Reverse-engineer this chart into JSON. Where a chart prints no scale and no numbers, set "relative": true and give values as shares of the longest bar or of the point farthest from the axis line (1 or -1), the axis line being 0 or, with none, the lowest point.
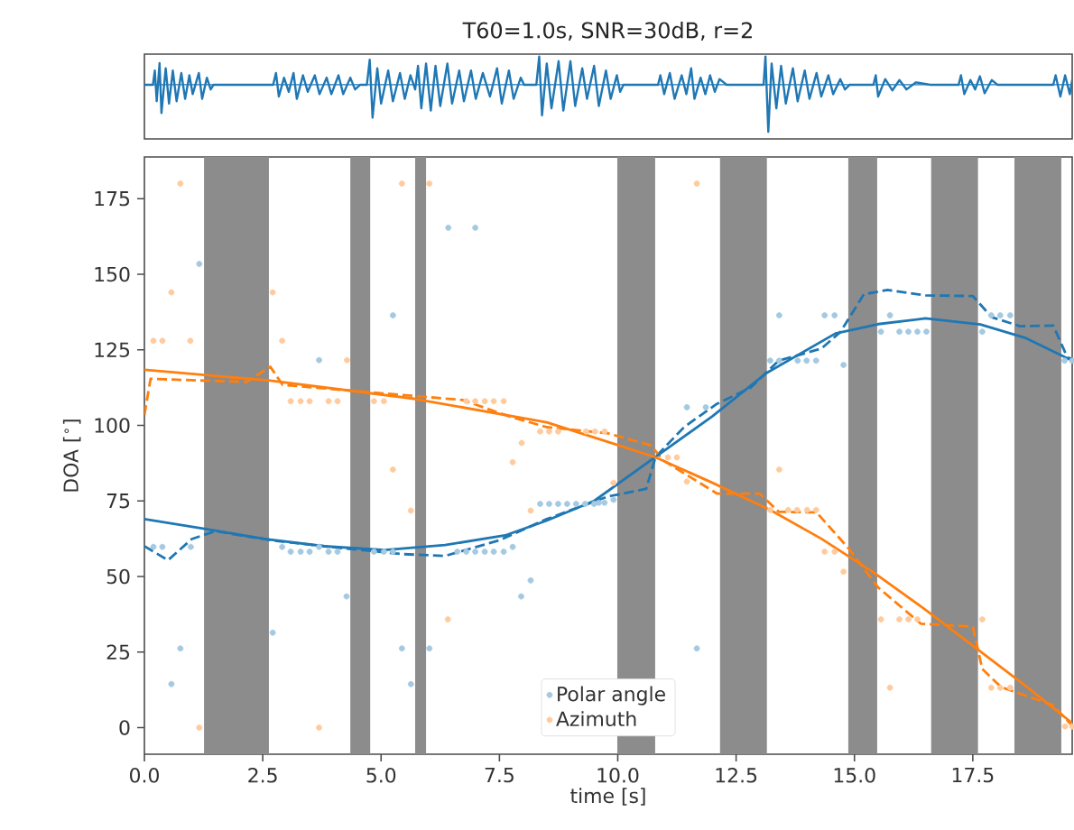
{
  "chart_data": [
    {
      "type": "line",
      "title": "T60=1.0s, SNR=30dB, r=2",
      "relative": true,
      "xlim": [
        0,
        19.6
      ],
      "color": "#1f77b4",
      "ref_lines": [
        {
          "axis": "y",
          "value": 0,
          "color": "#1f77b4"
        }
      ],
      "x": [
        0,
        0.18,
        0.22,
        0.26,
        0.32,
        0.36,
        0.45,
        0.52,
        0.6,
        0.68,
        0.78,
        0.86,
        0.95,
        1.02,
        1.15,
        1.22,
        1.32,
        1.4,
        1.46,
        2.72,
        2.78,
        2.84,
        2.95,
        3.05,
        3.15,
        3.22,
        3.35,
        3.45,
        3.6,
        3.7,
        3.85,
        3.95,
        4.1,
        4.2,
        4.35,
        4.45,
        4.56,
        4.7,
        4.76,
        4.82,
        4.92,
        5.0,
        5.15,
        5.25,
        5.4,
        5.5,
        5.62,
        5.72,
        5.78,
        5.85,
        5.95,
        6.05,
        6.15,
        6.25,
        6.4,
        6.5,
        6.65,
        6.75,
        6.9,
        7.0,
        7.15,
        7.3,
        7.45,
        7.55,
        7.7,
        7.8,
        7.95,
        8.02,
        8.28,
        8.34,
        8.4,
        8.5,
        8.6,
        8.75,
        8.85,
        9.0,
        9.1,
        9.25,
        9.35,
        9.5,
        9.6,
        9.75,
        9.85,
        9.98,
        10.05,
        10.12,
        10.85,
        10.9,
        10.98,
        11.1,
        11.2,
        11.35,
        11.45,
        11.55,
        11.62,
        11.75,
        11.85,
        11.95,
        12.05,
        12.15,
        12.3,
        13.08,
        13.12,
        13.18,
        13.25,
        13.35,
        13.45,
        13.55,
        13.7,
        13.8,
        13.95,
        14.05,
        14.2,
        14.3,
        14.45,
        14.55,
        14.7,
        14.8,
        14.9,
        15.4,
        15.45,
        15.5,
        15.65,
        15.8,
        15.95,
        16.1,
        16.3,
        16.6,
        17.2,
        17.25,
        17.32,
        17.45,
        17.55,
        17.65,
        17.75,
        17.9,
        18.02,
        19.2,
        19.25,
        19.35,
        19.45,
        19.55,
        19.6
      ],
      "values": [
        0,
        0,
        0.3,
        -0.35,
        0.46,
        -0.6,
        0.35,
        -0.4,
        0.3,
        -0.35,
        0.25,
        -0.3,
        0.2,
        -0.2,
        0.25,
        -0.3,
        0.15,
        -0.1,
        0,
        0,
        0.25,
        -0.25,
        0.15,
        -0.15,
        0.25,
        -0.3,
        0.2,
        -0.15,
        0.2,
        -0.2,
        0.15,
        -0.2,
        0.2,
        -0.2,
        0.15,
        -0.1,
        0,
        0,
        0.53,
        -0.7,
        0.35,
        -0.4,
        0.3,
        -0.35,
        0.25,
        -0.3,
        0.2,
        -0.1,
        0.4,
        -0.5,
        0.45,
        -0.55,
        0.4,
        -0.45,
        0.45,
        -0.4,
        0.3,
        -0.35,
        0.3,
        -0.3,
        0.25,
        -0.25,
        0.35,
        -0.4,
        0.3,
        -0.3,
        0.15,
        0,
        0,
        0.6,
        -0.65,
        0.45,
        -0.5,
        0.5,
        -0.55,
        0.5,
        -0.45,
        0.35,
        -0.3,
        0.4,
        -0.45,
        0.3,
        -0.3,
        0.2,
        -0.15,
        0,
        0,
        0.2,
        -0.2,
        0.25,
        -0.3,
        0.2,
        -0.2,
        0.35,
        -0.3,
        0.15,
        -0.2,
        0.2,
        -0.15,
        0.12,
        0,
        0,
        0.6,
        -1,
        0.45,
        -0.5,
        0.4,
        -0.4,
        0.35,
        -0.35,
        0.3,
        -0.3,
        0.25,
        -0.25,
        0.2,
        -0.2,
        0.12,
        -0.1,
        0,
        0,
        0.2,
        -0.25,
        0.12,
        -0.12,
        0.1,
        -0.1,
        0.05,
        0,
        0,
        0.2,
        -0.2,
        0.1,
        -0.1,
        0.18,
        -0.18,
        0.1,
        0,
        0,
        0.2,
        -0.25,
        0.2,
        -0.2,
        0.1
      ]
    },
    {
      "type": "scatter",
      "xlabel": "time [s]",
      "ylabel": "DOA [$^{∘}$]",
      "xlim": [
        0,
        19.6
      ],
      "ylim": [
        -8.8,
        188.8
      ],
      "xticks": [
        {
          "value": 0,
          "label": "0.0"
        },
        {
          "value": 2.5,
          "label": "2.5"
        },
        {
          "value": 5,
          "label": "5.0"
        },
        {
          "value": 7.5,
          "label": "7.5"
        },
        {
          "value": 10,
          "label": "10.0"
        },
        {
          "value": 12.5,
          "label": "12.5"
        },
        {
          "value": 15,
          "label": "15.0"
        },
        {
          "value": 17.5,
          "label": "17.5"
        }
      ],
      "yticks": [
        0,
        25,
        50,
        75,
        100,
        125,
        150,
        175
      ],
      "legend": "bottom",
      "bands": [
        {
          "axis": "x",
          "from": 1.26,
          "to": 2.63,
          "color": "#8c8c8c"
        },
        {
          "axis": "x",
          "from": 4.35,
          "to": 4.77,
          "color": "#8c8c8c"
        },
        {
          "axis": "x",
          "from": 5.72,
          "to": 5.95,
          "color": "#8c8c8c"
        },
        {
          "axis": "x",
          "from": 9.99,
          "to": 10.79,
          "color": "#8c8c8c"
        },
        {
          "axis": "x",
          "from": 12.16,
          "to": 13.15,
          "color": "#8c8c8c"
        },
        {
          "axis": "x",
          "from": 14.87,
          "to": 15.48,
          "color": "#8c8c8c"
        },
        {
          "axis": "x",
          "from": 16.62,
          "to": 17.61,
          "color": "#8c8c8c"
        },
        {
          "axis": "x",
          "from": 18.38,
          "to": 19.37,
          "color": "#8c8c8c"
        }
      ],
      "series": [
        {
          "name": "Polar angle",
          "type": "scatter",
          "marker": "circle",
          "color": "#a5c9e1",
          "x": [
            0.19,
            0.38,
            0.57,
            0.76,
            0.98,
            1.16,
            2.71,
            2.91,
            3.09,
            3.3,
            3.49,
            3.69,
            3.69,
            3.89,
            4.08,
            4.27,
            4.85,
            5.06,
            5.25,
            5.25,
            5.44,
            5.63,
            6.02,
            6.42,
            6.61,
            6.8,
            6.99,
            6.99,
            7.19,
            7.38,
            7.59,
            7.78,
            7.96,
            8.16,
            8.36,
            8.55,
            8.74,
            8.93,
            9.12,
            9.31,
            9.5,
            9.6,
            9.72,
            9.91,
            11.46,
            11.67,
            11.86,
            13.22,
            13.41,
            13.41,
            13.8,
            13.99,
            14.19,
            14.37,
            14.58,
            14.77,
            15.56,
            15.75,
            15.95,
            16.14,
            16.33,
            16.52,
            17.7,
            17.89,
            18.08,
            18.29,
            19.44,
            19.6
          ],
          "values": [
            59.8,
            59.8,
            14.4,
            26.2,
            59.8,
            153.4,
            31.4,
            59.8,
            58.2,
            58.2,
            58.2,
            59.8,
            121.6,
            58.2,
            58.2,
            43.4,
            58.2,
            58.2,
            58.2,
            136.4,
            26.2,
            14.4,
            26.2,
            165.4,
            58.2,
            58.2,
            58.2,
            165.4,
            58.2,
            58.2,
            58.2,
            59.8,
            43.4,
            48.7,
            74,
            74,
            74,
            74,
            74,
            74,
            74,
            74.4,
            74.4,
            75.4,
            106,
            26.2,
            106,
            121.4,
            121.4,
            136.4,
            121.4,
            121.4,
            121.4,
            136.4,
            136.4,
            120,
            131,
            136.4,
            131,
            131,
            131,
            131,
            131,
            136.4,
            136.4,
            136.4,
            121.4,
            121.4
          ]
        },
        {
          "name": "Azimuth",
          "type": "scatter",
          "marker": "circle",
          "color": "#ffcb9e",
          "x": [
            0.19,
            0.38,
            0.57,
            0.76,
            0.97,
            1.16,
            2.71,
            2.91,
            3.09,
            3.3,
            3.49,
            3.69,
            3.89,
            4.08,
            4.28,
            4.85,
            5.06,
            5.25,
            5.44,
            5.63,
            6.02,
            6.41,
            6.8,
            6.99,
            7.19,
            7.38,
            7.59,
            7.78,
            7.97,
            8.16,
            8.36,
            8.55,
            8.74,
            9.33,
            9.52,
            9.72,
            9.91,
            11.06,
            11.25,
            11.46,
            11.67,
            13.22,
            13.41,
            13.6,
            13.79,
            14.0,
            14.19,
            14.37,
            14.58,
            14.77,
            15.56,
            15.75,
            15.95,
            16.14,
            16.33,
            17.7,
            17.89,
            18.08,
            18.29,
            19.45,
            19.6
          ],
          "values": [
            128,
            128,
            144,
            180,
            128,
            0,
            144,
            128,
            108,
            108,
            108,
            0,
            108,
            108,
            121.6,
            108,
            108,
            85.4,
            180,
            71.8,
            180,
            35.8,
            108,
            108,
            108,
            108,
            108,
            87.8,
            94.2,
            71.8,
            98,
            98,
            98,
            98,
            98,
            98,
            81,
            89.4,
            89.4,
            81.4,
            180,
            72,
            85.4,
            72,
            72,
            72,
            72,
            58.2,
            58.2,
            51.6,
            35.8,
            13.2,
            35.8,
            35.8,
            35.8,
            35.8,
            13.2,
            13.2,
            13.2,
            0.4,
            0.4
          ]
        },
        {
          "type": "line",
          "marker": "none",
          "line_style": "dashed",
          "color": "#1f77b4",
          "x": [
            0,
            0.5,
            1.0,
            1.5,
            2.67,
            3.8,
            5.46,
            6.35,
            7.5,
            8.5,
            9.78,
            10.6,
            10.8,
            11.4,
            12.08,
            12.8,
            13.4,
            14.3,
            14.7,
            15.2,
            15.7,
            16.5,
            17.5,
            17.9,
            18.5,
            19.2,
            19.5,
            19.6
          ],
          "values": [
            60,
            55.4,
            62.4,
            65,
            62,
            60,
            57.4,
            56.8,
            62,
            69,
            76.4,
            79,
            89.6,
            99.4,
            107,
            112.4,
            121.4,
            125.4,
            130.8,
            143.4,
            144.8,
            143,
            142.8,
            135.8,
            132.8,
            133,
            122.4,
            122
          ]
        },
        {
          "type": "line",
          "marker": "none",
          "line_style": "dashed",
          "color": "#ff7f0e",
          "x": [
            0,
            0.13,
            1.27,
            2.16,
            2.66,
            2.92,
            5.95,
            6.72,
            7.7,
            8.5,
            9.78,
            10.7,
            10.96,
            12.1,
            13.0,
            13.4,
            14.2,
            14.87,
            15.5,
            16.4,
            17.5,
            17.7,
            18.1,
            19.2,
            19.6
          ],
          "values": [
            103.4,
            115.4,
            114.8,
            114.4,
            119.4,
            113.4,
            109.4,
            108.4,
            103,
            99.4,
            97.4,
            93.4,
            88.4,
            77.4,
            77.4,
            71.4,
            71.2,
            59.4,
            46.4,
            34.4,
            33.4,
            19.4,
            13.4,
            7.4,
            0.6
          ]
        },
        {
          "type": "line",
          "marker": "none",
          "line_style": "solid",
          "color": "#1f77b4",
          "x": [
            0,
            1.27,
            2.54,
            3.81,
            5.08,
            6.35,
            7.62,
            8.5,
            9.5,
            10.8,
            12,
            13.15,
            14.6,
            15.5,
            16.5,
            17.66,
            18.6,
            19.6
          ],
          "values": [
            69,
            65.8,
            62.4,
            60,
            58.8,
            60.4,
            63.6,
            68.5,
            75,
            89.6,
            103,
            117.4,
            130.4,
            133.5,
            135.4,
            133.4,
            129,
            121.4
          ]
        },
        {
          "type": "line",
          "marker": "none",
          "line_style": "solid",
          "color": "#ff7f0e",
          "x": [
            0,
            2.66,
            5.7,
            8.5,
            9.9,
            10.8,
            12,
            13.22,
            14.3,
            15.4,
            16.5,
            17.56,
            18.6,
            19.6
          ],
          "values": [
            118.4,
            114.8,
            108.8,
            101,
            94,
            89.4,
            81,
            72,
            62.5,
            51.4,
            39,
            26.4,
            14,
            1.5
          ]
        }
      ]
    }
  ]
}
